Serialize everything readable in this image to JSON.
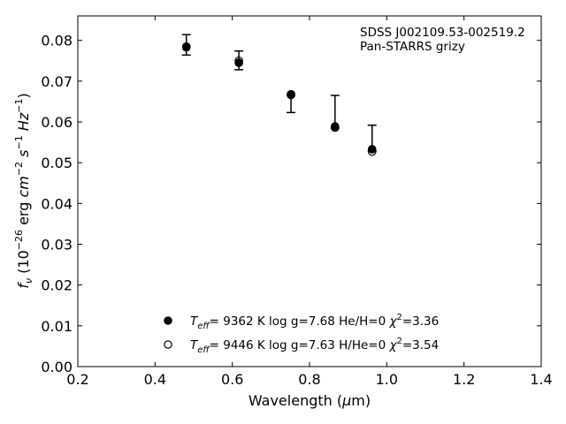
{
  "chart_data": {
    "type": "scatter",
    "xlabel": {
      "main": "Wavelength (",
      "mu": "μ",
      "tail": "m)"
    },
    "ylabel": "f_ν (10^-26 erg cm^-2 s^-1 Hz^-1)",
    "xlim": [
      0.2,
      1.4
    ],
    "ylim": [
      0.0,
      0.086
    ],
    "xticks": [
      0.2,
      0.4,
      0.6,
      0.8,
      1.0,
      1.2,
      1.4
    ],
    "yticks": [
      0.0,
      0.01,
      0.02,
      0.03,
      0.04,
      0.05,
      0.06,
      0.07,
      0.08
    ],
    "xtick_labels": [
      "0.2",
      "0.4",
      "0.6",
      "0.8",
      "1.0",
      "1.2",
      "1.4"
    ],
    "ytick_labels": [
      "0.00",
      "0.01",
      "0.02",
      "0.03",
      "0.04",
      "0.05",
      "0.06",
      "0.07",
      "0.08"
    ],
    "annotation": [
      "SDSS J002109.53-002519.2",
      "Pan-STARRS grizy"
    ],
    "observed": {
      "x": [
        0.481,
        0.617,
        0.752,
        0.866,
        0.962
      ],
      "y": [
        0.0789,
        0.0751,
        0.0665,
        0.059,
        0.0535
      ],
      "yerr_low": [
        0.0025,
        0.0023,
        0.0042,
        0.0005,
        0.0007
      ],
      "yerr_high": [
        0.0025,
        0.0023,
        0.0001,
        0.0075,
        0.0057
      ]
    },
    "series": [
      {
        "name": "T_eff= 9362 K log g=7.68 He/H=0 χ2=3.36",
        "marker": "filled",
        "x": [
          0.481,
          0.617,
          0.752,
          0.866,
          0.962
        ],
        "y": [
          0.0783,
          0.0745,
          0.0666,
          0.0589,
          0.0533
        ]
      },
      {
        "name": "T_eff= 9446 K log g=7.63 H/He=0 χ2=3.54",
        "marker": "open",
        "x": [
          0.481,
          0.617,
          0.752,
          0.866,
          0.962
        ],
        "y": [
          0.0785,
          0.075,
          0.0668,
          0.0586,
          0.0527
        ]
      }
    ],
    "legend": [
      {
        "marker": "filled",
        "teff_value": "9362 K",
        "logg": "log g=7.68",
        "comp": "He/H=0",
        "chi_value": "=3.36"
      },
      {
        "marker": "open",
        "teff_value": "9446 K",
        "logg": "log g=7.63",
        "comp": "H/He=0",
        "chi_value": "=3.54"
      }
    ],
    "legend_placement": "lower-center",
    "grid": false,
    "colors": {
      "marker": "#000000",
      "axes": "#000000",
      "background": "#ffffff"
    }
  }
}
